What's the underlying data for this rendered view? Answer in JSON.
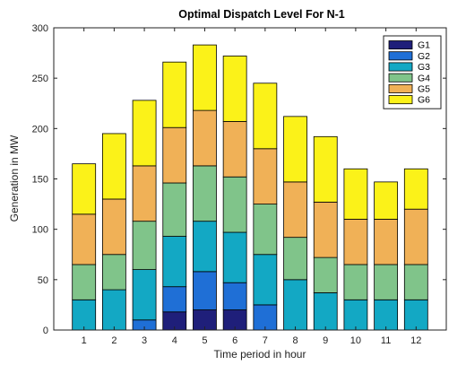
{
  "chart_data": {
    "type": "bar",
    "stacked": true,
    "title": "Optimal Dispatch Level For N-1",
    "xlabel": "Time period in hour",
    "ylabel": "Generation in MW",
    "ylim": [
      0,
      300
    ],
    "yticks": [
      0,
      50,
      100,
      150,
      200,
      250,
      300
    ],
    "categories": [
      "1",
      "2",
      "3",
      "4",
      "5",
      "6",
      "7",
      "8",
      "9",
      "10",
      "11",
      "12"
    ],
    "legend_position": "top-right",
    "grid": false,
    "series": [
      {
        "name": "G1",
        "color": "#1f1f7a",
        "values": [
          0,
          0,
          0,
          18,
          20,
          20,
          0,
          0,
          0,
          0,
          0,
          0
        ]
      },
      {
        "name": "G2",
        "color": "#1f6fd6",
        "values": [
          0,
          0,
          10,
          25,
          38,
          27,
          25,
          0,
          0,
          0,
          0,
          0
        ]
      },
      {
        "name": "G3",
        "color": "#13a8c4",
        "values": [
          30,
          40,
          50,
          50,
          50,
          50,
          50,
          50,
          37,
          30,
          30,
          30
        ]
      },
      {
        "name": "G4",
        "color": "#80c48a",
        "values": [
          35,
          35,
          48,
          53,
          55,
          55,
          50,
          42,
          35,
          35,
          35,
          35
        ]
      },
      {
        "name": "G5",
        "color": "#f0b157",
        "values": [
          50,
          55,
          55,
          55,
          55,
          55,
          55,
          55,
          55,
          45,
          45,
          55
        ]
      },
      {
        "name": "G6",
        "color": "#fbf219",
        "values": [
          50,
          65,
          65,
          65,
          65,
          65,
          65,
          65,
          65,
          50,
          37,
          40
        ]
      }
    ]
  }
}
